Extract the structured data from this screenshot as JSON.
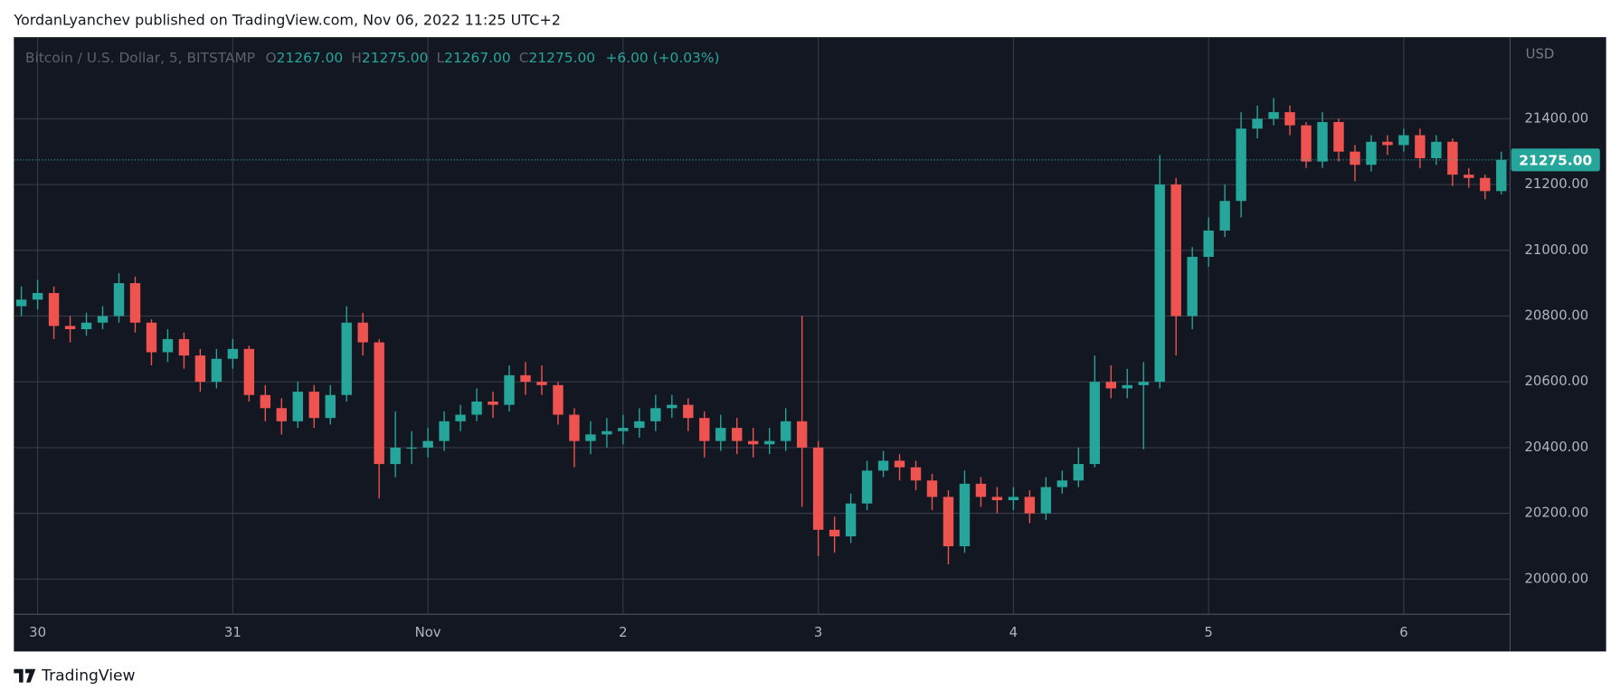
{
  "header": "YordanLyanchev published on TradingView.com, Nov 06, 2022 11:25 UTC+2",
  "chart_data": {
    "type": "candlestick",
    "symbol": "Bitcoin / U.S. Dollar, 5, BITSTAMP",
    "ohlc_legend": [
      {
        "key": "O",
        "value": 21267,
        "label": "21267.00"
      },
      {
        "key": "H",
        "value": 21275,
        "label": "21275.00"
      },
      {
        "key": "L",
        "value": 21267,
        "label": "21267.00"
      },
      {
        "key": "C",
        "value": 21275,
        "label": "21275.00"
      }
    ],
    "change": "+6.00 (+0.03%)",
    "y_unit": "USD",
    "last_price": {
      "value": 21275,
      "label": "21275.00"
    },
    "categories": [
      null,
      "30",
      null,
      null,
      null,
      null,
      null,
      null,
      null,
      null,
      null,
      null,
      null,
      "31",
      null,
      null,
      null,
      null,
      null,
      null,
      null,
      null,
      null,
      null,
      null,
      "Nov",
      null,
      null,
      null,
      null,
      null,
      null,
      null,
      null,
      null,
      null,
      null,
      "2",
      null,
      null,
      null,
      null,
      null,
      null,
      null,
      null,
      null,
      null,
      null,
      "3",
      null,
      null,
      null,
      null,
      null,
      null,
      null,
      null,
      null,
      null,
      null,
      "4",
      null,
      null,
      null,
      null,
      null,
      null,
      null,
      null,
      null,
      null,
      null,
      "5",
      null,
      null,
      null,
      null,
      null,
      null,
      null,
      null,
      null,
      null,
      null,
      "6",
      null,
      null,
      null,
      null,
      null,
      null
    ],
    "open": [
      20830,
      20850,
      20870,
      20770,
      20760,
      20780,
      20800,
      20900,
      20780,
      20690,
      20730,
      20680,
      20600,
      20670,
      20700,
      20560,
      20520,
      20480,
      20570,
      20490,
      20560,
      20780,
      20720,
      20350,
      20400,
      20400,
      20420,
      20480,
      20500,
      20540,
      20530,
      20620,
      20600,
      20590,
      20500,
      20420,
      20440,
      20450,
      20460,
      20480,
      20520,
      20530,
      20490,
      20420,
      20460,
      20420,
      20410,
      20420,
      20480,
      20400,
      20150,
      20130,
      20230,
      20330,
      20360,
      20340,
      20300,
      20250,
      20100,
      20290,
      20250,
      20240,
      20250,
      20200,
      20280,
      20300,
      20350,
      20600,
      20580,
      20590,
      20600,
      21200,
      20800,
      20980,
      21060,
      21150,
      21370,
      21400,
      21420,
      21380,
      21270,
      21390,
      21300,
      21260,
      21330,
      21320,
      21350,
      21280,
      21330,
      21230,
      21220,
      21180
    ],
    "high": [
      20890,
      20910,
      20890,
      20800,
      20810,
      20830,
      20930,
      20920,
      20790,
      20760,
      20750,
      20700,
      20700,
      20730,
      20710,
      20590,
      20550,
      20600,
      20590,
      20590,
      20830,
      20810,
      20730,
      20510,
      20450,
      20460,
      20510,
      20530,
      20580,
      20570,
      20650,
      20660,
      20650,
      20600,
      20520,
      20480,
      20490,
      20500,
      20520,
      20560,
      20560,
      20550,
      20510,
      20500,
      20490,
      20460,
      20460,
      20520,
      20800,
      20420,
      20190,
      20260,
      20360,
      20390,
      20380,
      20360,
      20320,
      20270,
      20330,
      20310,
      20280,
      20280,
      20270,
      20310,
      20330,
      20400,
      20680,
      20650,
      20640,
      20660,
      21290,
      21220,
      21010,
      21100,
      21200,
      21420,
      21440,
      21463,
      21440,
      21390,
      21420,
      21400,
      21320,
      21350,
      21350,
      21370,
      21370,
      21350,
      21340,
      21250,
      21230,
      21300
    ],
    "low": [
      20800,
      20820,
      20730,
      20720,
      20740,
      20760,
      20780,
      20750,
      20650,
      20660,
      20640,
      20570,
      20580,
      20640,
      20540,
      20480,
      20440,
      20460,
      20460,
      20470,
      20540,
      20680,
      20245,
      20310,
      20350,
      20370,
      20390,
      20450,
      20480,
      20490,
      20510,
      20560,
      20560,
      20470,
      20340,
      20380,
      20400,
      20410,
      20430,
      20450,
      20490,
      20450,
      20370,
      20390,
      20380,
      20370,
      20380,
      20390,
      20220,
      20070,
      20080,
      20110,
      20210,
      20310,
      20300,
      20270,
      20210,
      20045,
      20080,
      20220,
      20200,
      20210,
      20170,
      20180,
      20260,
      20280,
      20340,
      20550,
      20550,
      20395,
      20580,
      20680,
      20760,
      20950,
      21040,
      21100,
      21340,
      21380,
      21350,
      21250,
      21250,
      21270,
      21210,
      21240,
      21290,
      21300,
      21250,
      21260,
      21195,
      21190,
      21155,
      21170
    ],
    "close": [
      20850,
      20870,
      20770,
      20760,
      20780,
      20800,
      20900,
      20780,
      20690,
      20730,
      20680,
      20600,
      20670,
      20700,
      20560,
      20520,
      20480,
      20570,
      20490,
      20560,
      20780,
      20720,
      20350,
      20400,
      20400,
      20420,
      20480,
      20500,
      20540,
      20530,
      20620,
      20600,
      20590,
      20500,
      20420,
      20440,
      20450,
      20460,
      20480,
      20520,
      20530,
      20490,
      20420,
      20460,
      20420,
      20410,
      20420,
      20480,
      20400,
      20150,
      20130,
      20230,
      20330,
      20360,
      20340,
      20300,
      20250,
      20100,
      20290,
      20250,
      20240,
      20250,
      20200,
      20280,
      20300,
      20350,
      20600,
      20580,
      20590,
      20600,
      21200,
      20800,
      20980,
      21060,
      21150,
      21370,
      21400,
      21420,
      21380,
      21270,
      21390,
      21300,
      21260,
      21330,
      21320,
      21350,
      21280,
      21330,
      21230,
      21220,
      21180,
      21275
    ],
    "colors": {
      "up": "#26a69a",
      "down": "#ef5350"
    },
    "ylim": [
      19893,
      21645
    ],
    "yticks": [
      {
        "value": 20000,
        "label": "20000.00"
      },
      {
        "value": 20200,
        "label": "20200.00"
      },
      {
        "value": 20400,
        "label": "20400.00"
      },
      {
        "value": 20600,
        "label": "20600.00"
      },
      {
        "value": 20800,
        "label": "20800.00"
      },
      {
        "value": 21000,
        "label": "21000.00"
      },
      {
        "value": 21200,
        "label": "21200.00"
      },
      {
        "value": 21400,
        "label": "21400.00"
      }
    ],
    "grid": true
  },
  "footer": "TradingView"
}
